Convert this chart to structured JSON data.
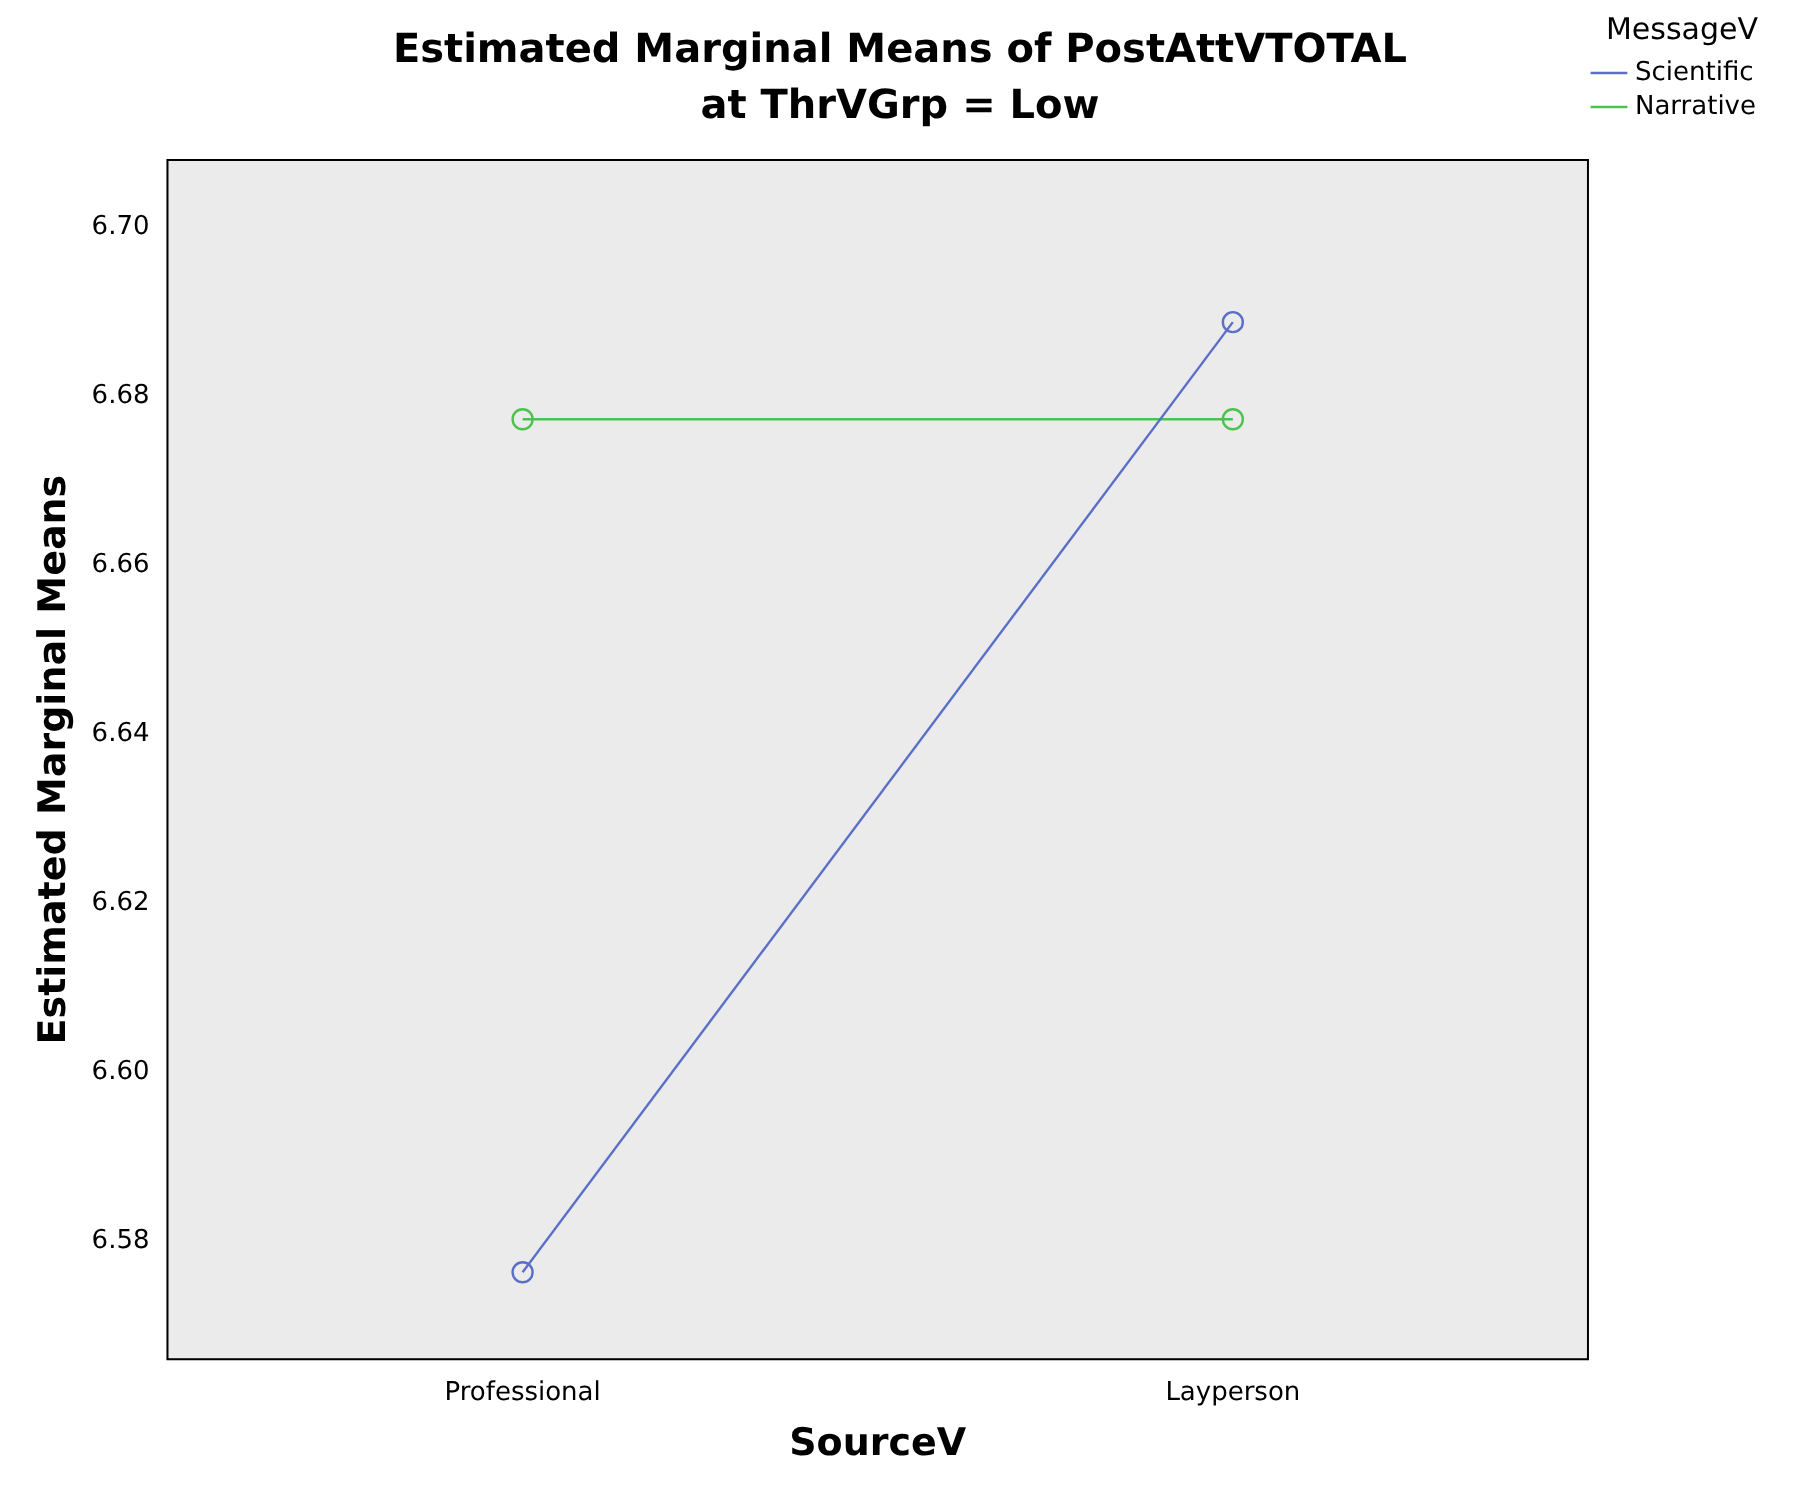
{
  "chart_data": {
    "type": "line",
    "title": "Estimated Marginal Means of PostAttVTOTAL",
    "subtitle": "at ThrVGrp = Low",
    "xlabel": "SourceV",
    "ylabel": "Estimated Marginal Means",
    "legend_title": "MessageV",
    "categories": [
      "Professional",
      "Layperson"
    ],
    "series": [
      {
        "name": "Scientific",
        "color": "#5b6fc8",
        "values": [
          6.5763,
          6.6888
        ]
      },
      {
        "name": "Narrative",
        "color": "#4cc34c",
        "values": [
          6.6773,
          6.6773
        ]
      }
    ],
    "ylim": [
      6.566,
      6.708
    ],
    "yticks": [
      6.58,
      {
        "value": 6.6,
        "label": "6.60"
      },
      6.62,
      6.64,
      6.66,
      6.68,
      {
        "value": 6.7,
        "label": "6.70"
      }
    ],
    "grid": false,
    "legend": "top right",
    "marker": "circle",
    "line_style": "solid"
  }
}
